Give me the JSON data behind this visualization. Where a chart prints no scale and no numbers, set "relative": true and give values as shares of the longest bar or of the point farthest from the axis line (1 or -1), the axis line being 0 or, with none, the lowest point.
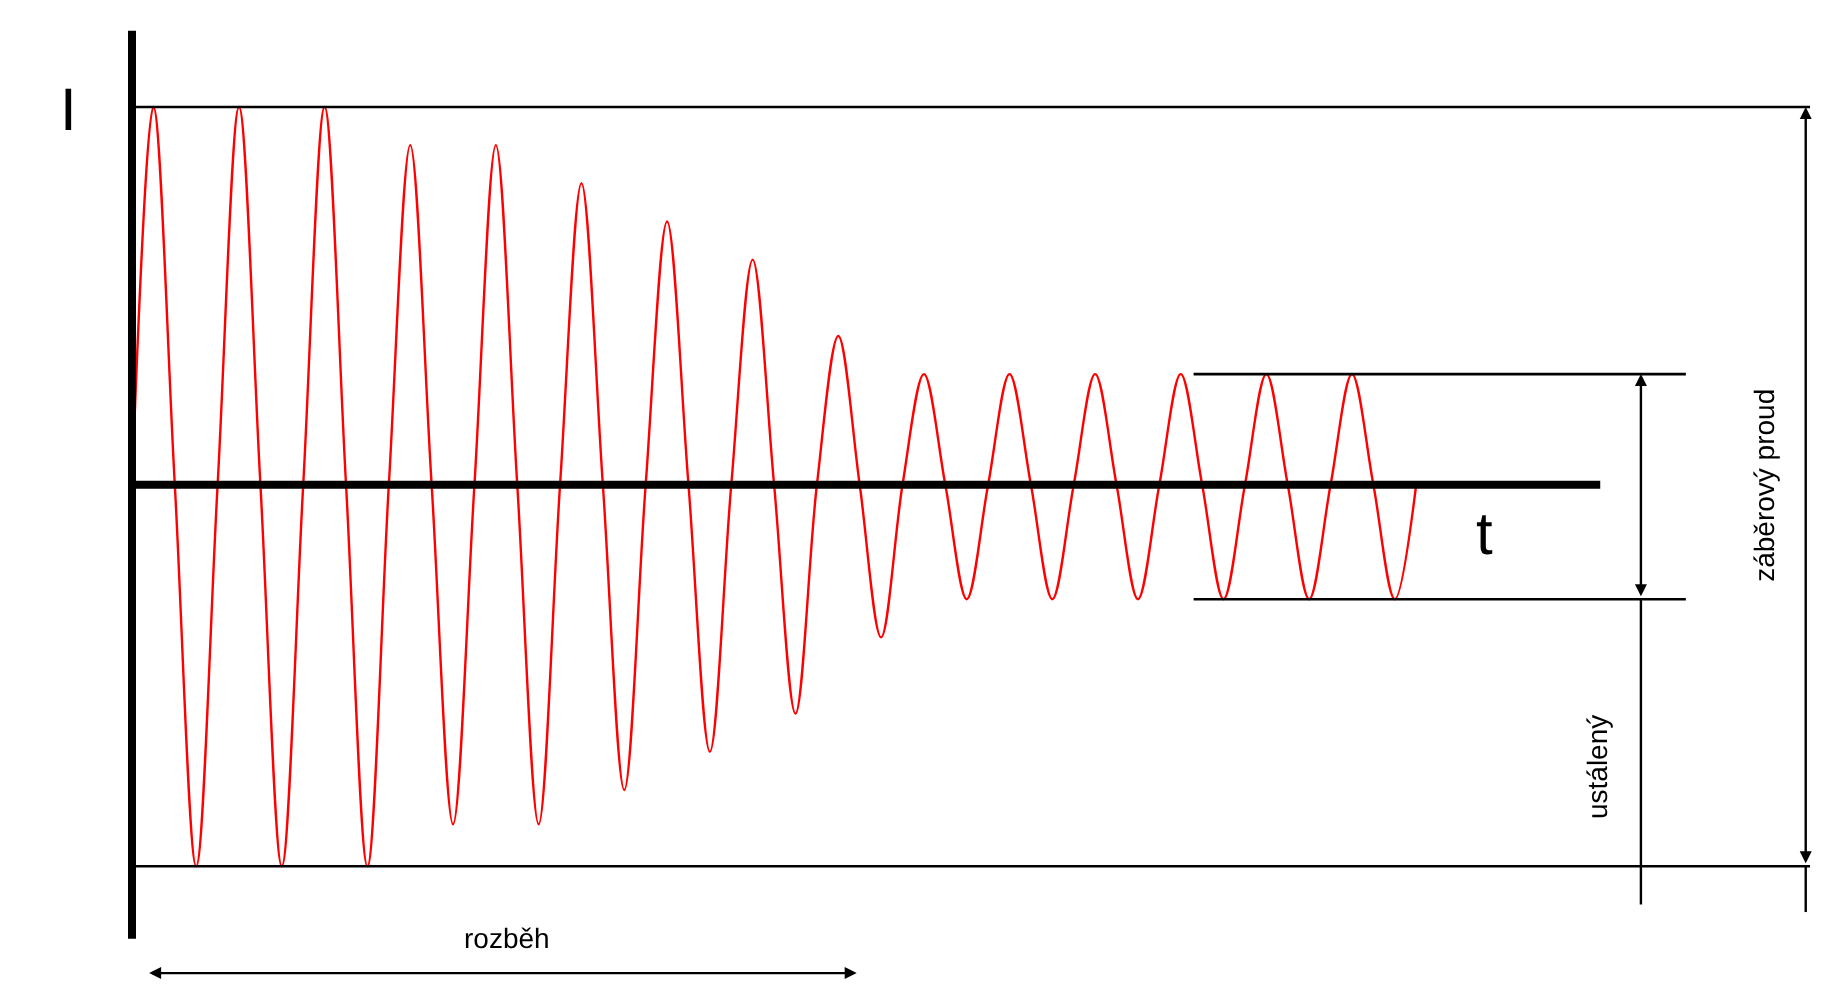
{
  "chart_data": {
    "type": "line",
    "relative": true,
    "xlabel": "t",
    "ylabel": "I",
    "categories": [
      null,
      null,
      null,
      null,
      null,
      null,
      null,
      null,
      null,
      null,
      null,
      null,
      null,
      null,
      null,
      null,
      null,
      null,
      null,
      null,
      null,
      null,
      null,
      null,
      null,
      null,
      null,
      null,
      null,
      null,
      null,
      null,
      null,
      null,
      null,
      null,
      null,
      null,
      null,
      null,
      null,
      null,
      null,
      null,
      null,
      null,
      null,
      null,
      null,
      null,
      null,
      null,
      null,
      null,
      null,
      null,
      null,
      null,
      null,
      null,
      null
    ],
    "series": [
      {
        "color": "#ff0000",
        "values": [
          0,
          0.99,
          0,
          -1,
          0,
          0.99,
          0,
          -1,
          0,
          0.99,
          0,
          -1,
          0,
          0.89,
          0,
          -0.89,
          0,
          0.89,
          0,
          -0.89,
          0,
          0.79,
          0,
          -0.8,
          0,
          0.69,
          0,
          -0.7,
          0,
          0.59,
          0,
          -0.6,
          0,
          0.39,
          0,
          -0.4,
          0,
          0.29,
          0,
          -0.3,
          0,
          0.29,
          0,
          -0.3,
          0,
          0.29,
          0,
          -0.3,
          0,
          0.29,
          0,
          -0.3,
          0,
          0.29,
          0,
          -0.3,
          0,
          0.29,
          0,
          -0.3,
          0
        ]
      }
    ],
    "ref_lines": [
      {
        "axis": "y",
        "value": 0.99,
        "color": "#000000"
      },
      {
        "axis": "y",
        "value": -1,
        "color": "#000000"
      },
      {
        "axis": "y",
        "value": 0.29,
        "color": "#000000"
      },
      {
        "axis": "y",
        "value": -0.3,
        "color": "#000000"
      }
    ],
    "annotations": [
      "rozběh",
      "ustálený",
      "záběrový proud"
    ],
    "legend": false,
    "marker": "none",
    "line_style": "solid"
  }
}
